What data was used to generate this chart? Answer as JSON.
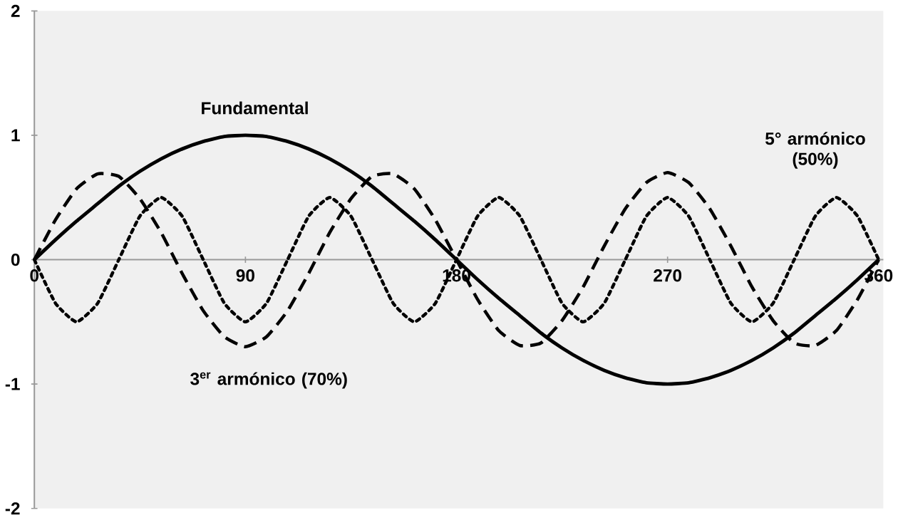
{
  "chart_data": {
    "type": "line",
    "x": [
      0,
      9,
      18,
      27,
      36,
      45,
      54,
      63,
      72,
      81,
      90,
      99,
      108,
      117,
      126,
      135,
      144,
      153,
      162,
      171,
      180,
      189,
      198,
      207,
      216,
      225,
      234,
      243,
      252,
      261,
      270,
      279,
      288,
      297,
      306,
      315,
      324,
      333,
      342,
      351,
      360
    ],
    "series": [
      {
        "name": "Fundamental",
        "color": "#000000",
        "line_style": "solid",
        "values": [
          0,
          0.16,
          0.31,
          0.45,
          0.59,
          0.71,
          0.81,
          0.89,
          0.95,
          0.99,
          1,
          0.99,
          0.95,
          0.89,
          0.81,
          0.71,
          0.59,
          0.45,
          0.31,
          0.16,
          0,
          -0.16,
          -0.31,
          -0.45,
          -0.59,
          -0.71,
          -0.81,
          -0.89,
          -0.95,
          -0.99,
          -1,
          -0.99,
          -0.95,
          -0.89,
          -0.81,
          -0.71,
          -0.59,
          -0.45,
          -0.31,
          -0.16,
          0
        ]
      },
      {
        "name": "3$^{er}$ armónico (70%)",
        "color": "#000000",
        "line_style": "dashed",
        "values": [
          0,
          0.32,
          0.57,
          0.69,
          0.67,
          0.49,
          0.22,
          -0.11,
          -0.41,
          -0.62,
          -0.7,
          -0.62,
          -0.41,
          -0.11,
          0.22,
          0.49,
          0.67,
          0.69,
          0.57,
          0.32,
          0,
          -0.32,
          -0.57,
          -0.69,
          -0.67,
          -0.49,
          -0.22,
          0.11,
          0.41,
          0.62,
          0.7,
          0.62,
          0.41,
          0.11,
          -0.22,
          -0.49,
          -0.67,
          -0.69,
          -0.57,
          -0.32,
          0
        ]
      },
      {
        "name": "5° armónico (50%)",
        "color": "#000000",
        "line_style": "dotted",
        "values": [
          0,
          -0.35,
          -0.5,
          -0.35,
          0,
          0.35,
          0.5,
          0.35,
          0,
          -0.35,
          -0.5,
          -0.35,
          0,
          0.35,
          0.5,
          0.35,
          0,
          -0.35,
          -0.5,
          -0.35,
          0,
          0.35,
          0.5,
          0.35,
          0,
          -0.35,
          -0.5,
          -0.35,
          0,
          0.35,
          0.5,
          0.35,
          0,
          -0.35,
          -0.5,
          -0.35,
          0,
          0.35,
          0.5,
          0.35,
          0
        ]
      }
    ],
    "xlim": [
      0,
      362
    ],
    "ylim": [
      -2,
      2
    ],
    "xticks": [
      0,
      90,
      180,
      270,
      360
    ],
    "yticks": [
      -2,
      -1,
      0,
      1,
      2
    ],
    "grid": false,
    "legend": false,
    "marker": "none"
  }
}
